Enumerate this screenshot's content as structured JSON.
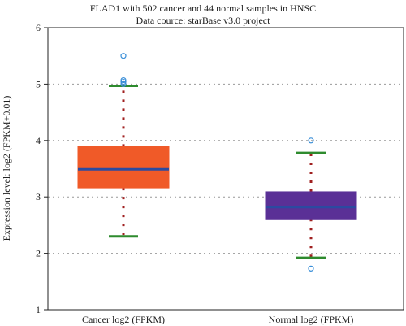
{
  "chart_data": {
    "type": "box",
    "title": "FLAD1 with 502 cancer and 44 normal samples in HNSC",
    "subtitle": "Data cource: starBase v3.0 project",
    "ylabel": "Expression level: log2 (FPKM+0.01)",
    "xlabel": "",
    "ylim": [
      1,
      6
    ],
    "yticks": [
      1,
      2,
      3,
      4,
      5,
      6
    ],
    "grid": true,
    "categories": [
      "Cancer log2 (FPKM)",
      "Normal log2 (FPKM)"
    ],
    "boxes": [
      {
        "name": "Cancer log2 (FPKM)",
        "whisker_low": 2.3,
        "q1": 3.16,
        "median": 3.49,
        "q3": 3.89,
        "whisker_high": 4.97,
        "outliers": [
          5.5,
          5.07,
          5.04,
          5.0
        ],
        "color": "#f05a28"
      },
      {
        "name": "Normal log2 (FPKM)",
        "whisker_low": 1.92,
        "q1": 2.61,
        "median": 2.82,
        "q3": 3.09,
        "whisker_high": 3.78,
        "outliers": [
          4.0,
          1.73
        ],
        "color": "#5a3096"
      }
    ],
    "colors": {
      "median": "#2b4aa0",
      "whisker": "#2e8b2e",
      "dash": "#a02020",
      "outlier": "#3a8fd8",
      "grid": "#999999"
    }
  }
}
